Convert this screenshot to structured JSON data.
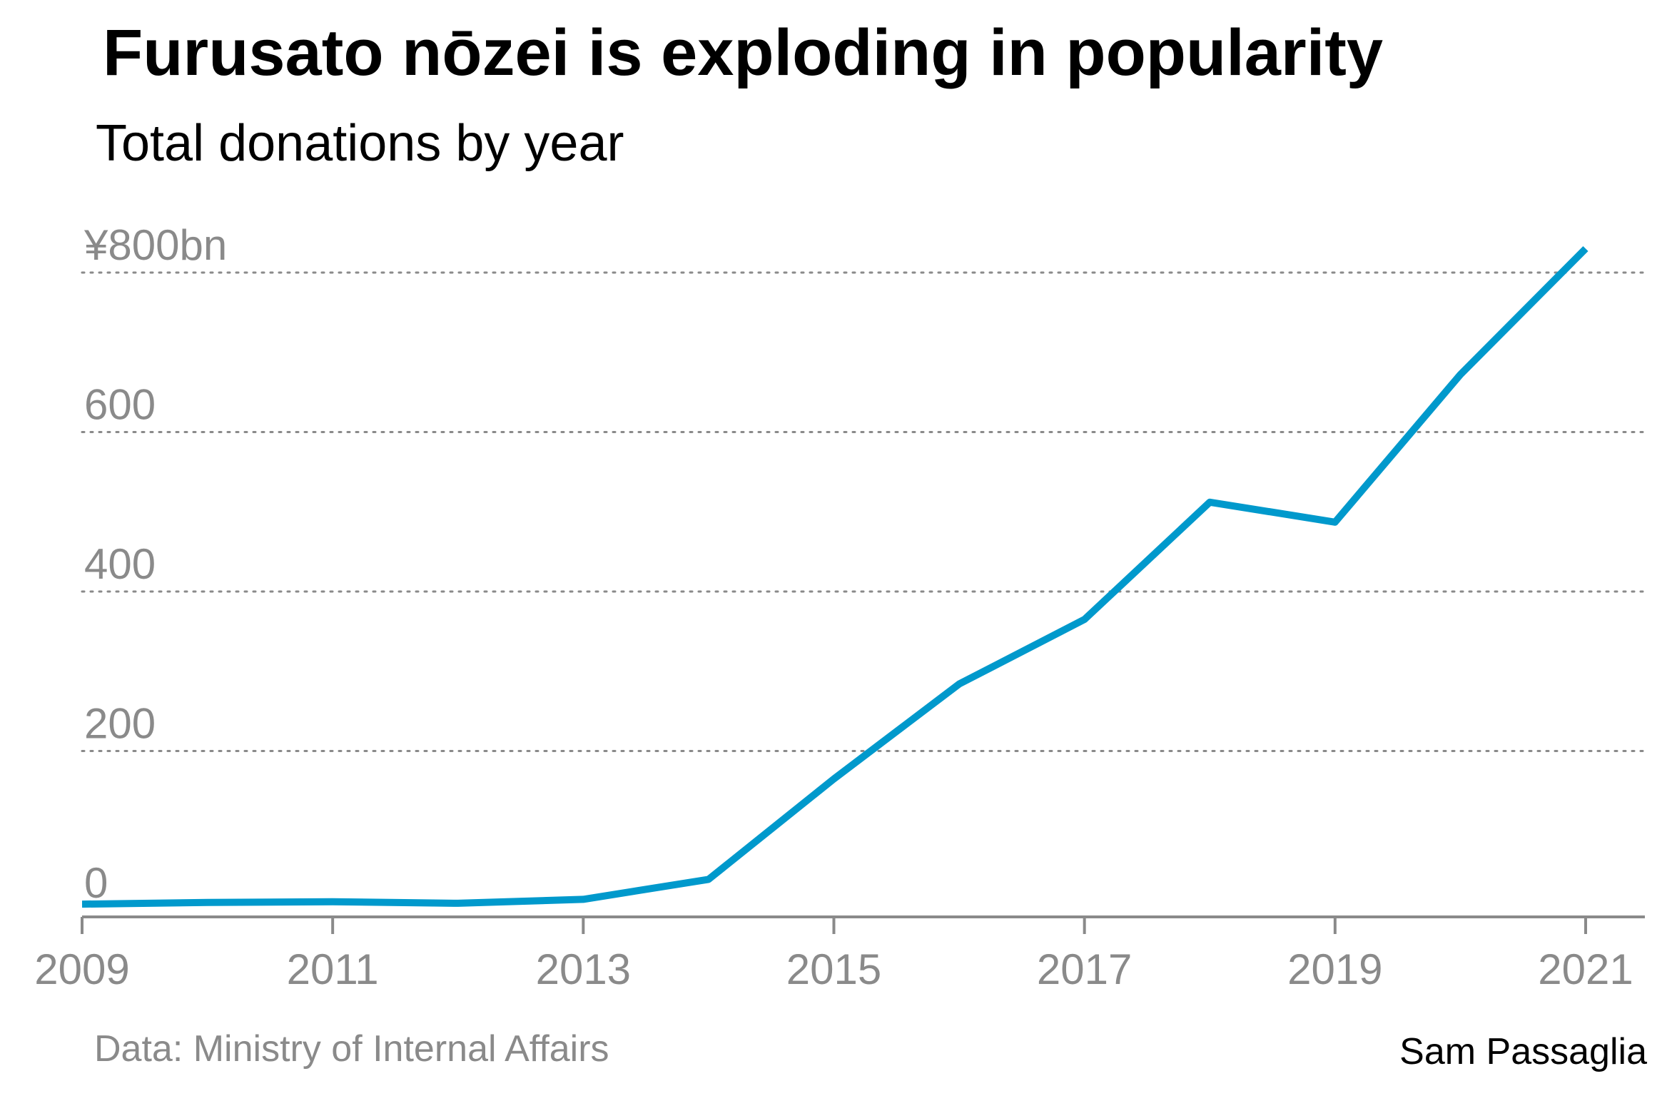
{
  "header": {
    "title": "Furusato nōzei is exploding in popularity",
    "subtitle": "Total donations by year"
  },
  "footer": {
    "source": "Data: Ministry of Internal Affairs",
    "credit": "Sam Passaglia"
  },
  "colors": {
    "line": "#0099cc",
    "axis": "#8a8a8a",
    "grid": "#8a8a8a",
    "tick_label": "#8a8a8a"
  },
  "chart_data": {
    "type": "line",
    "title": "Furusato nōzei is exploding in popularity",
    "subtitle": "Total donations by year",
    "xlabel": "",
    "ylabel": "",
    "xlim": [
      2009,
      2021.5
    ],
    "ylim": [
      0,
      830
    ],
    "grid": true,
    "x_ticks": [
      2009,
      2011,
      2013,
      2015,
      2017,
      2019,
      2021
    ],
    "x_tick_labels": [
      "2009",
      "2011",
      "2013",
      "2015",
      "2017",
      "2019",
      "2021"
    ],
    "y_ticks": [
      0,
      200,
      400,
      600,
      800
    ],
    "y_tick_labels": [
      "0",
      "200",
      "400",
      "600",
      "¥800bn"
    ],
    "series": [
      {
        "x": [
          2009,
          2010,
          2011,
          2012,
          2013,
          2014,
          2015,
          2016,
          2017,
          2018,
          2019,
          2020,
          2021
        ],
        "values": [
          8,
          10,
          11,
          9,
          14,
          39,
          165,
          284,
          365,
          512,
          487,
          672,
          830
        ]
      }
    ]
  }
}
